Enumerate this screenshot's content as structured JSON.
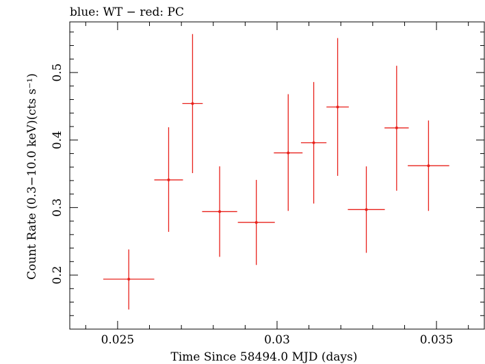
{
  "chart_data": {
    "type": "scatter",
    "title": "blue: WT − red: PC",
    "xlabel": "Time Since 58494.0 MJD (days)",
    "ylabel": "Count Rate (0.3−10.0 keV)(cts s⁻¹)",
    "xlim": [
      0.0235,
      0.0365
    ],
    "ylim": [
      0.12,
      0.575
    ],
    "xticks": [
      0.025,
      0.03,
      0.035
    ],
    "xtick_labels": [
      "0.025",
      "0.03",
      "0.035"
    ],
    "yticks": [
      0.2,
      0.3,
      0.4,
      0.5
    ],
    "ytick_labels": [
      "0.2",
      "0.3",
      "0.4",
      "0.5"
    ],
    "series": [
      {
        "name": "PC",
        "color": "#e8201a",
        "points": [
          {
            "x": 0.02535,
            "xerr": 0.0008,
            "y": 0.194,
            "ylo": 0.149,
            "yhi": 0.238
          },
          {
            "x": 0.0266,
            "xerr": 0.00045,
            "y": 0.341,
            "ylo": 0.264,
            "yhi": 0.419
          },
          {
            "x": 0.02735,
            "xerr": 0.00032,
            "y": 0.454,
            "ylo": 0.351,
            "yhi": 0.557
          },
          {
            "x": 0.0282,
            "xerr": 0.00055,
            "y": 0.294,
            "ylo": 0.227,
            "yhi": 0.361
          },
          {
            "x": 0.02935,
            "xerr": 0.00058,
            "y": 0.278,
            "ylo": 0.215,
            "yhi": 0.341
          },
          {
            "x": 0.03035,
            "xerr": 0.00045,
            "y": 0.381,
            "ylo": 0.295,
            "yhi": 0.468
          },
          {
            "x": 0.03115,
            "xerr": 0.0004,
            "y": 0.396,
            "ylo": 0.306,
            "yhi": 0.486
          },
          {
            "x": 0.0319,
            "xerr": 0.00035,
            "y": 0.449,
            "ylo": 0.347,
            "yhi": 0.551
          },
          {
            "x": 0.0328,
            "xerr": 0.00058,
            "y": 0.297,
            "ylo": 0.233,
            "yhi": 0.361
          },
          {
            "x": 0.03375,
            "xerr": 0.00038,
            "y": 0.418,
            "ylo": 0.325,
            "yhi": 0.51
          },
          {
            "x": 0.03475,
            "xerr": 0.00065,
            "y": 0.362,
            "ylo": 0.295,
            "yhi": 0.429
          }
        ]
      }
    ]
  }
}
